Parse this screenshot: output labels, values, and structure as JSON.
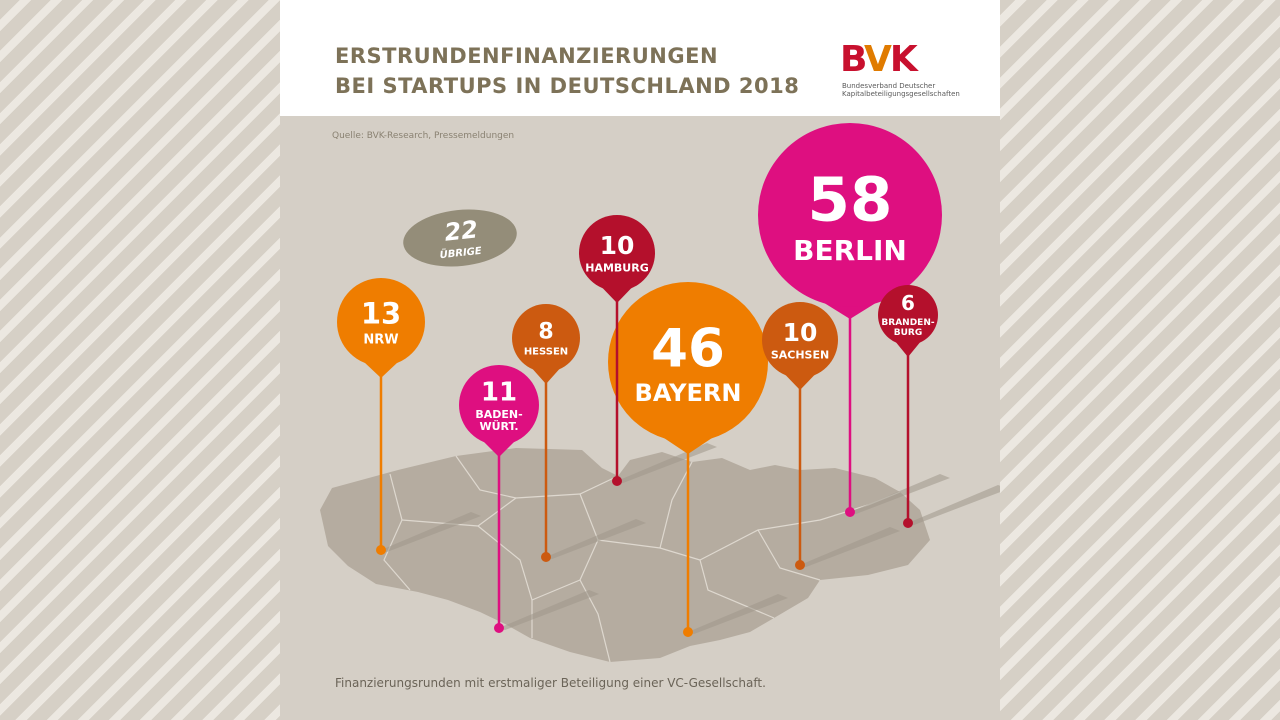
{
  "title": [
    "ERSTRUNDENFINANZIERUNGEN",
    "BEI STARTUPS IN DEUTSCHLAND 2018"
  ],
  "logo": {
    "mark": [
      "B",
      "V",
      "K"
    ],
    "subtitle": [
      "Bundesverband Deutscher",
      "Kapitalbeteiligungsgesellschaften"
    ]
  },
  "source": "Quelle: BVK-Research, Pressemeldungen",
  "footnote": "Finanzierungsrunden mit erstmaliger Beteiligung einer VC-Gesellschaft.",
  "colors": {
    "magenta": "#de0f80",
    "orange": "#ef7d00",
    "rust": "#cc5a10",
    "crimson": "#b4102c",
    "badge": "#948d79",
    "map": "#b5aca0",
    "title": "#7d7258"
  },
  "chart_data": {
    "type": "bubble-map",
    "title": "ERSTRUNDENFINANZIERUNGEN BEI STARTUPS IN DEUTSCHLAND 2018",
    "unit": "Finanzierungsrunden",
    "series": [
      {
        "label_lines": [
          "BERLIN"
        ],
        "value": 58,
        "color": "magenta"
      },
      {
        "label_lines": [
          "BAYERN"
        ],
        "value": 46,
        "color": "orange"
      },
      {
        "label_lines": [
          "NRW"
        ],
        "value": 13,
        "color": "orange"
      },
      {
        "label_lines": [
          "BADEN-",
          "WÜRT."
        ],
        "value": 11,
        "color": "magenta"
      },
      {
        "label_lines": [
          "HAMBURG"
        ],
        "value": 10,
        "color": "crimson"
      },
      {
        "label_lines": [
          "SACHSEN"
        ],
        "value": 10,
        "color": "rust"
      },
      {
        "label_lines": [
          "HESSEN"
        ],
        "value": 8,
        "color": "rust"
      },
      {
        "label_lines": [
          "BRANDEN-",
          "BURG"
        ],
        "value": 6,
        "color": "crimson"
      }
    ],
    "other": {
      "label": "ÜBRIGE",
      "value": 22
    }
  }
}
